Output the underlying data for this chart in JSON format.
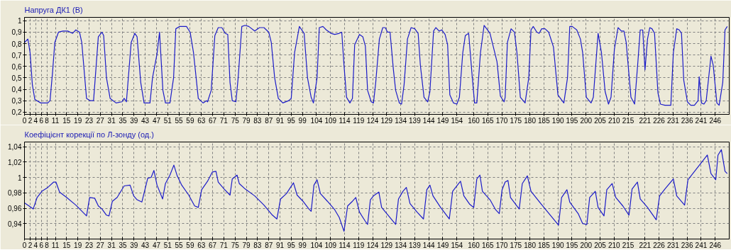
{
  "chart_data": [
    {
      "type": "line",
      "title": "Напруга ДК1 (В)",
      "grid": true,
      "xlim": [
        0,
        251
      ],
      "ylim": [
        0.18,
        1.03
      ],
      "xticks": [
        0,
        2,
        4,
        6,
        8,
        11,
        15,
        19,
        23,
        27,
        31,
        35,
        39,
        43,
        47,
        51,
        55,
        59,
        63,
        67,
        71,
        75,
        79,
        83,
        87,
        91,
        95,
        99,
        104,
        109,
        114,
        119,
        124,
        129,
        134,
        139,
        144,
        149,
        154,
        160,
        165,
        170,
        175,
        180,
        185,
        190,
        195,
        200,
        205,
        210,
        215,
        221,
        226,
        231,
        236,
        241,
        246
      ],
      "yticks": [
        {
          "value": 0.2,
          "label": "0,2"
        },
        {
          "value": 0.3,
          "label": "0,3"
        },
        {
          "value": 0.4,
          "label": "0,4"
        },
        {
          "value": 0.5,
          "label": "0,5"
        },
        {
          "value": 0.6,
          "label": "0,6"
        },
        {
          "value": 0.7,
          "label": "0,7"
        },
        {
          "value": 0.8,
          "label": "0,8"
        },
        {
          "value": 0.9,
          "label": "0,9"
        },
        {
          "value": 1,
          "label": "1"
        }
      ],
      "x": [
        0,
        1.2,
        2.0,
        2.8,
        3.7,
        5.8,
        8.3,
        9.1,
        10.0,
        10.8,
        12.1,
        13.7,
        15.4,
        17.1,
        18.3,
        19.6,
        20.4,
        22.1,
        23.4,
        24.6,
        26.3,
        27.6,
        28.2,
        29.2,
        30.5,
        32.6,
        34.7,
        35.5,
        36.3,
        38.0,
        39.3,
        40.1,
        41.4,
        42.6,
        44.7,
        45.6,
        47.2,
        48.1,
        49.3,
        50.2,
        51.8,
        53.1,
        53.9,
        55.2,
        57.7,
        59.0,
        60.2,
        61.9,
        63.6,
        64.8,
        65.2,
        66.5,
        67.8,
        69.0,
        70.3,
        71.5,
        72.4,
        73.2,
        74.0,
        75.3,
        76.1,
        77.4,
        78.6,
        79.9,
        82.0,
        83.7,
        85.3,
        87.0,
        87.9,
        89.1,
        90.4,
        92.0,
        94.1,
        95.0,
        96.2,
        97.9,
        99.6,
        100.8,
        102.1,
        102.9,
        104.2,
        105.0,
        106.3,
        107.5,
        109.2,
        110.5,
        112.1,
        113.0,
        113.8,
        114.7,
        115.9,
        116.8,
        117.6,
        119.3,
        120.5,
        121.4,
        122.2,
        123.5,
        124.3,
        125.1,
        126.4,
        127.6,
        128.5,
        129.3,
        130.2,
        131.4,
        132.2,
        133.5,
        134.3,
        135.2,
        136.4,
        137.7,
        139.0,
        140.2,
        141.0,
        142.3,
        143.6,
        144.4,
        145.7,
        146.5,
        147.7,
        148.6,
        149.8,
        150.7,
        151.5,
        152.8,
        154.0,
        154.9,
        156.1,
        157.0,
        158.2,
        159.5,
        160.3,
        161.1,
        162.4,
        163.7,
        164.9,
        165.8,
        167.0,
        168.3,
        169.5,
        170.8,
        171.2,
        172.0,
        173.3,
        174.5,
        175.4,
        176.6,
        178.3,
        179.6,
        180.4,
        181.2,
        182.5,
        183.3,
        184.2,
        185.4,
        186.7,
        188.4,
        190.0,
        192.1,
        193.4,
        194.2,
        195.1,
        196.7,
        198.0,
        198.8,
        200.1,
        201.8,
        202.6,
        204.3,
        205.5,
        206.8,
        208.0,
        208.9,
        210.1,
        211.4,
        212.6,
        213.5,
        214.3,
        216.0,
        217.3,
        218.5,
        219.3,
        220.2,
        221.0,
        221.9,
        222.7,
        223.5,
        224.4,
        225.6,
        226.5,
        228.1,
        230.2,
        231.1,
        232.3,
        233.2,
        234.0,
        234.8,
        236.1,
        237.3,
        238.6,
        239.9,
        240.3,
        241.1,
        242.0,
        242.8,
        244.5,
        245.3,
        246.6,
        247.4,
        248.7,
        249.5,
        250.3
      ],
      "series": [
        {
          "color": "#1c1cc8",
          "values": [
            0.81,
            0.84,
            0.72,
            0.44,
            0.31,
            0.28,
            0.28,
            0.3,
            0.55,
            0.81,
            0.9,
            0.91,
            0.91,
            0.89,
            0.92,
            0.9,
            0.81,
            0.32,
            0.3,
            0.3,
            0.86,
            0.9,
            0.87,
            0.5,
            0.32,
            0.28,
            0.29,
            0.32,
            0.29,
            0.81,
            0.89,
            0.86,
            0.46,
            0.28,
            0.28,
            0.5,
            0.71,
            0.9,
            0.39,
            0.28,
            0.28,
            0.5,
            0.93,
            0.95,
            0.95,
            0.9,
            0.72,
            0.32,
            0.28,
            0.3,
            0.29,
            0.39,
            0.87,
            0.94,
            0.94,
            0.89,
            0.88,
            0.46,
            0.3,
            0.29,
            0.5,
            0.95,
            0.96,
            0.95,
            0.91,
            0.94,
            0.94,
            0.9,
            0.81,
            0.5,
            0.32,
            0.28,
            0.3,
            0.32,
            0.72,
            0.95,
            0.89,
            0.5,
            0.33,
            0.28,
            0.5,
            0.94,
            0.95,
            0.92,
            0.89,
            0.88,
            0.89,
            0.9,
            0.61,
            0.33,
            0.28,
            0.32,
            0.79,
            0.88,
            0.86,
            0.78,
            0.39,
            0.29,
            0.28,
            0.46,
            0.84,
            0.94,
            0.94,
            0.9,
            0.9,
            0.57,
            0.39,
            0.28,
            0.27,
            0.44,
            0.84,
            0.94,
            0.93,
            0.89,
            0.61,
            0.33,
            0.29,
            0.38,
            0.91,
            0.94,
            0.91,
            0.92,
            0.88,
            0.79,
            0.35,
            0.28,
            0.27,
            0.33,
            0.72,
            0.87,
            0.89,
            0.5,
            0.28,
            0.28,
            0.72,
            0.96,
            0.92,
            0.89,
            0.77,
            0.64,
            0.34,
            0.29,
            0.33,
            0.81,
            0.93,
            0.9,
            0.72,
            0.33,
            0.28,
            0.5,
            0.92,
            0.95,
            0.9,
            0.89,
            0.93,
            0.93,
            0.9,
            0.77,
            0.35,
            0.28,
            0.5,
            0.95,
            0.95,
            0.92,
            0.84,
            0.72,
            0.33,
            0.28,
            0.33,
            0.89,
            0.72,
            0.38,
            0.27,
            0.33,
            0.75,
            0.94,
            0.91,
            0.91,
            0.81,
            0.33,
            0.27,
            0.65,
            0.92,
            0.92,
            0.57,
            0.84,
            0.94,
            0.93,
            0.89,
            0.37,
            0.27,
            0.26,
            0.26,
            0.72,
            0.93,
            0.92,
            0.89,
            0.48,
            0.29,
            0.26,
            0.26,
            0.3,
            0.51,
            0.28,
            0.27,
            0.3,
            0.69,
            0.61,
            0.28,
            0.26,
            0.46,
            0.92,
            0.95
          ]
        }
      ]
    },
    {
      "type": "line",
      "title": "Коефіцієнт корекції по Л-зонду (од.)",
      "grid": true,
      "xlim": [
        0,
        251
      ],
      "ylim": [
        0.92,
        1.046
      ],
      "xticks": [
        0,
        2,
        4,
        6,
        8,
        11,
        15,
        19,
        23,
        27,
        31,
        35,
        39,
        43,
        47,
        51,
        55,
        59,
        63,
        67,
        71,
        75,
        79,
        83,
        87,
        91,
        95,
        99,
        104,
        109,
        114,
        119,
        124,
        129,
        134,
        139,
        144,
        149,
        154,
        160,
        165,
        170,
        175,
        180,
        185,
        190,
        195,
        200,
        205,
        210,
        215,
        221,
        226,
        231,
        236,
        241,
        246
      ],
      "yticks": [
        {
          "value": 0.94,
          "label": "0,94"
        },
        {
          "value": 0.96,
          "label": "0,96"
        },
        {
          "value": 0.98,
          "label": "0,98"
        },
        {
          "value": 1,
          "label": "1"
        },
        {
          "value": 1.02,
          "label": "1,02"
        },
        {
          "value": 1.04,
          "label": "1,04"
        }
      ],
      "x": [
        0,
        1.6,
        3.1,
        4.5,
        6.2,
        8.3,
        10.4,
        11.2,
        12.5,
        15.0,
        18.3,
        22.1,
        23.2,
        25.0,
        26.3,
        27.6,
        29.2,
        30.1,
        31.3,
        33.0,
        35.5,
        37.6,
        38.9,
        40.1,
        41.8,
        43.9,
        45.1,
        46.1,
        47.2,
        49.2,
        50.2,
        51.8,
        53.2,
        54.4,
        56.0,
        58.5,
        60.6,
        61.9,
        63.1,
        65.2,
        66.9,
        68.2,
        69.0,
        71.1,
        73.2,
        74.0,
        75.7,
        76.5,
        78.6,
        82.0,
        85.3,
        88.3,
        89.9,
        91.2,
        93.3,
        95.8,
        97.1,
        99.2,
        101.3,
        102.1,
        103.1,
        104.2,
        105.4,
        107.9,
        110.5,
        112.1,
        113.8,
        115.1,
        116.8,
        118.0,
        119.3,
        121.4,
        122.2,
        123.2,
        124.3,
        126.2,
        127.2,
        129.7,
        132.2,
        133.2,
        134.8,
        136.0,
        137.3,
        139.8,
        142.1,
        143.3,
        144.4,
        145.5,
        148.2,
        151.3,
        152.5,
        154.0,
        155.3,
        156.5,
        158.6,
        160.0,
        161.1,
        162.2,
        163.1,
        165.8,
        167.8,
        169.1,
        170.1,
        171.2,
        172.2,
        173.1,
        176.2,
        177.3,
        179.1,
        180.4,
        185.0,
        190.2,
        191.3,
        193.2,
        194.2,
        197.2,
        198.8,
        200.3,
        201.3,
        203.3,
        204.3,
        206.4,
        207.4,
        209.3,
        210.6,
        213.1,
        215.3,
        216.4,
        218.3,
        219.3,
        221.9,
        225.0,
        226.2,
        228.1,
        231.1,
        232.3,
        235.1,
        236.3,
        243.2,
        244.5,
        246.2,
        247.0,
        248.2,
        249.5,
        250.3
      ],
      "series": [
        {
          "color": "#1c1cc8",
          "values": [
            0.967,
            0.963,
            0.959,
            0.974,
            0.982,
            0.987,
            0.994,
            0.994,
            0.981,
            0.974,
            0.964,
            0.95,
            0.974,
            0.973,
            0.963,
            0.959,
            0.951,
            0.95,
            0.969,
            0.974,
            0.989,
            0.99,
            0.976,
            0.971,
            0.968,
            0.999,
            1.0,
            1.009,
            0.99,
            0.972,
            0.992,
            1.003,
            1.016,
            1.002,
            0.99,
            0.977,
            0.963,
            0.961,
            0.984,
            0.995,
            1.007,
            1.008,
            0.994,
            0.985,
            0.977,
            0.998,
            1.003,
            0.992,
            0.985,
            0.976,
            0.964,
            0.951,
            0.946,
            0.972,
            0.979,
            0.993,
            0.977,
            0.969,
            0.959,
            0.956,
            0.99,
            0.997,
            0.979,
            0.969,
            0.958,
            0.948,
            0.93,
            0.963,
            0.969,
            0.974,
            0.955,
            0.943,
            0.939,
            0.971,
            0.976,
            0.981,
            0.961,
            0.95,
            0.939,
            0.972,
            0.982,
            0.987,
            0.966,
            0.955,
            0.946,
            0.984,
            0.99,
            0.976,
            0.961,
            0.946,
            0.982,
            0.989,
            0.995,
            0.976,
            0.965,
            0.961,
            0.998,
            1.003,
            0.982,
            0.971,
            0.958,
            0.953,
            0.984,
            0.994,
            0.996,
            0.974,
            0.959,
            0.992,
            1.002,
            0.982,
            0.961,
            0.938,
            0.974,
            0.984,
            0.968,
            0.953,
            0.94,
            0.939,
            0.974,
            0.982,
            0.961,
            0.95,
            0.984,
            0.992,
            0.974,
            0.963,
            0.951,
            0.985,
            0.994,
            0.972,
            0.961,
            0.945,
            0.976,
            0.985,
            0.998,
            0.976,
            0.964,
            0.997,
            1.029,
            1.005,
            0.997,
            1.029,
            1.036,
            1.008,
            1.005
          ]
        }
      ]
    }
  ]
}
